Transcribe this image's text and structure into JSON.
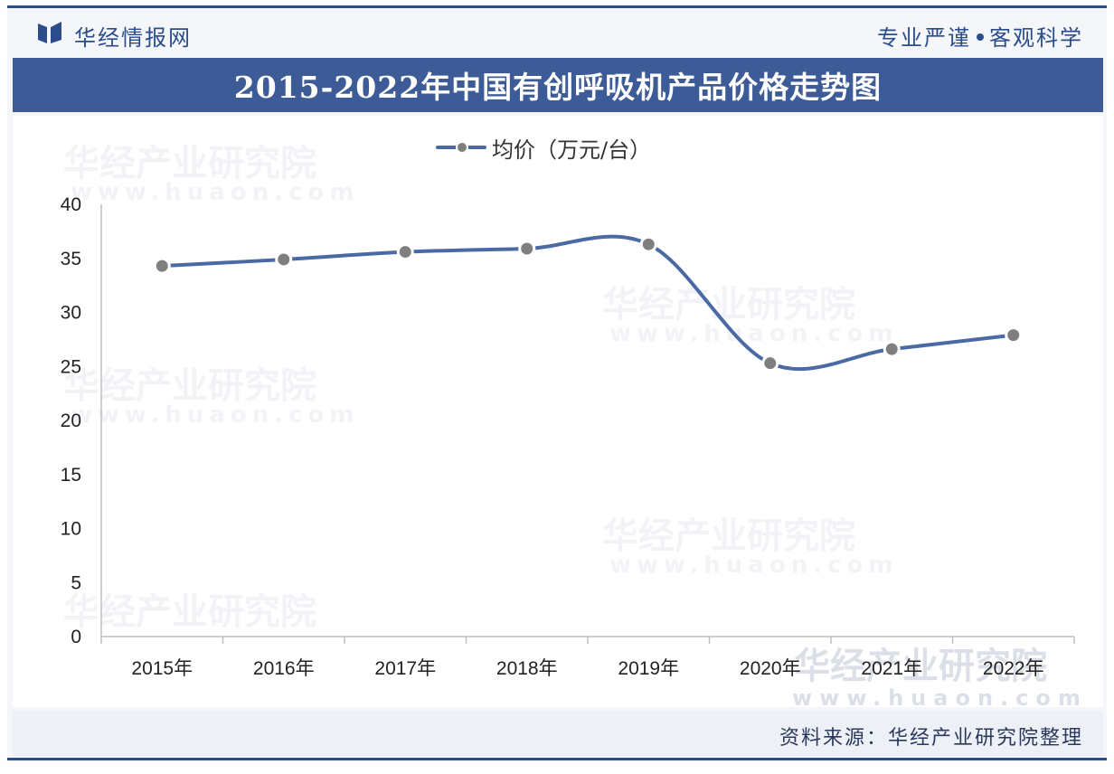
{
  "header": {
    "logo_text": "华经情报网",
    "slogan_left": "专业严谨",
    "slogan_right": "客观科学"
  },
  "watermark": {
    "text": "华经产业研究院",
    "url": "www.huaon.com"
  },
  "source": "资料来源：华经产业研究院整理",
  "colors": {
    "brand_blue": "#2b4d8c",
    "title_bar": "#3d5b96",
    "series_line": "#4a6aa3",
    "marker": "#7f7f7f"
  },
  "chart_data": {
    "type": "line",
    "title": "2015-2022年中国有创呼吸机产品价格走势图",
    "categories": [
      "2015年",
      "2016年",
      "2017年",
      "2018年",
      "2019年",
      "2020年",
      "2021年",
      "2022年"
    ],
    "series": [
      {
        "name": "均价（万元/台）",
        "values": [
          34.3,
          34.9,
          35.6,
          35.9,
          36.3,
          25.3,
          26.6,
          27.9
        ]
      }
    ],
    "y_ticks": [
      0,
      5,
      10,
      15,
      20,
      25,
      30,
      35,
      40
    ],
    "ylim": [
      0,
      40
    ],
    "smooth": true,
    "markers": true,
    "grid": false,
    "legend_position": "top-center"
  }
}
